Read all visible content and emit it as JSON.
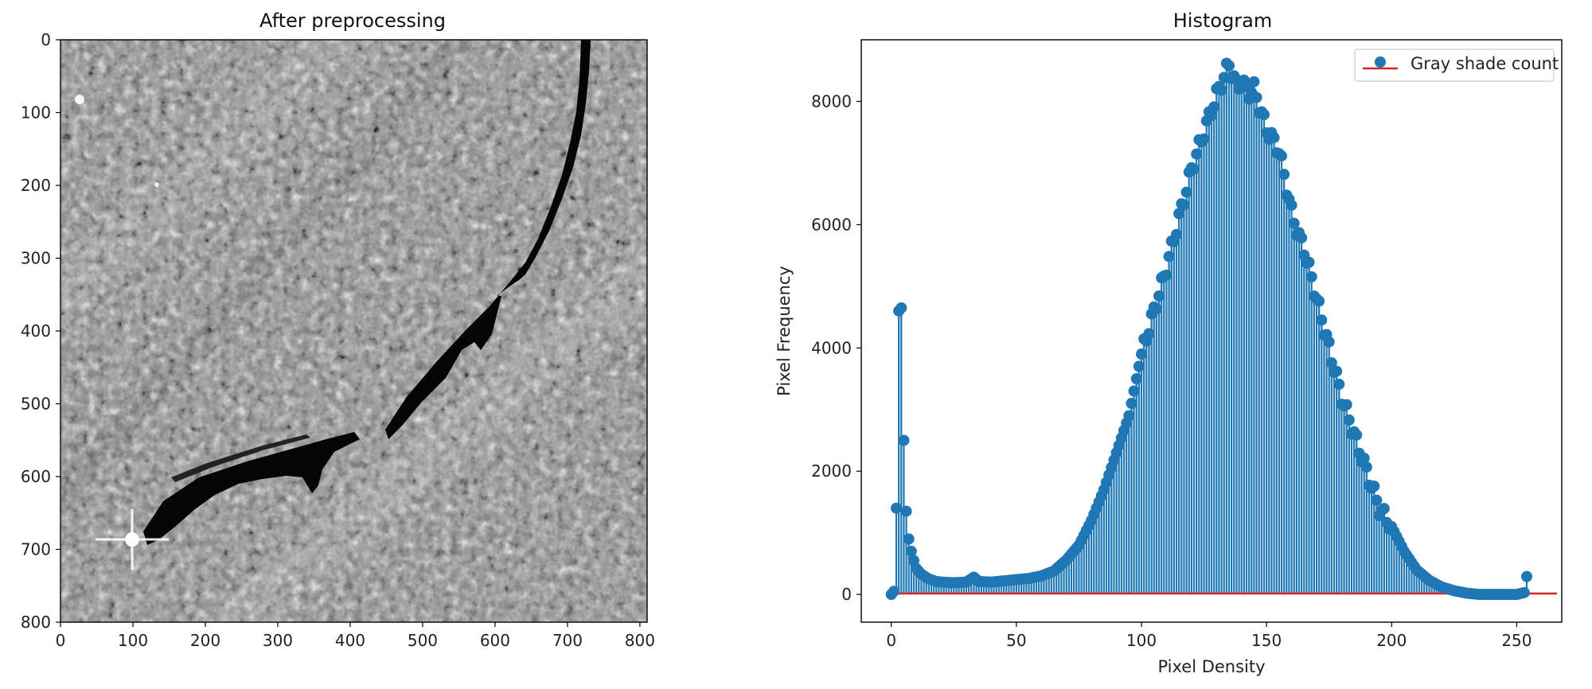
{
  "figure": {
    "left_panel": {
      "title": "After preprocessing",
      "x_ticks": [
        "0",
        "100",
        "200",
        "300",
        "400",
        "500",
        "600",
        "700",
        "800"
      ],
      "y_ticks": [
        "0",
        "100",
        "200",
        "300",
        "400",
        "500",
        "600",
        "700",
        "800"
      ],
      "xlim": [
        0,
        810
      ],
      "ylim": [
        800,
        0
      ],
      "image_description": "grayscale textured rock surface with a dark crack"
    },
    "right_panel": {
      "title": "Histogram",
      "xlabel": "Pixel Density",
      "ylabel": "Pixel Frequency",
      "legend": "Gray shade count"
    }
  },
  "chart_data": {
    "type": "bar",
    "title": "Histogram",
    "xlabel": "Pixel Density",
    "ylabel": "Pixel Frequency",
    "xlim": [
      -12,
      268
    ],
    "ylim": [
      -450,
      9000
    ],
    "x_ticks": [
      0,
      50,
      100,
      150,
      200,
      250
    ],
    "y_ticks": [
      0,
      2000,
      4000,
      6000,
      8000
    ],
    "grid": false,
    "legend_position": "upper-right",
    "colors": {
      "stem": "#1f77b4",
      "baseline": "#d62728"
    },
    "series": [
      {
        "name": "Gray shade count",
        "marker": "circle",
        "style": "stem"
      }
    ],
    "control_points": {
      "x": [
        0,
        1,
        2,
        3,
        4,
        5,
        6,
        7,
        8,
        9,
        10,
        12,
        15,
        18,
        20,
        25,
        30,
        33,
        35,
        40,
        45,
        50,
        55,
        60,
        65,
        70,
        75,
        80,
        85,
        90,
        95,
        100,
        105,
        110,
        115,
        120,
        125,
        130,
        133,
        135,
        138,
        140,
        143,
        145,
        148,
        150,
        155,
        160,
        163,
        165,
        170,
        175,
        180,
        185,
        190,
        195,
        200,
        205,
        210,
        215,
        220,
        225,
        230,
        235,
        240,
        245,
        250,
        253,
        254
      ],
      "y": [
        0,
        50,
        1400,
        4600,
        4650,
        2500,
        1350,
        900,
        700,
        550,
        420,
        330,
        250,
        210,
        200,
        190,
        200,
        280,
        210,
        200,
        220,
        240,
        260,
        300,
        380,
        560,
        800,
        1200,
        1700,
        2300,
        2900,
        3900,
        4600,
        5300,
        6100,
        6900,
        7500,
        8100,
        8400,
        8600,
        8250,
        8300,
        8150,
        8200,
        7800,
        7550,
        7200,
        6200,
        5800,
        5600,
        4800,
        4000,
        3200,
        2600,
        2000,
        1400,
        1100,
        700,
        400,
        230,
        120,
        60,
        20,
        0,
        0,
        0,
        0,
        30,
        290
      ]
    }
  }
}
